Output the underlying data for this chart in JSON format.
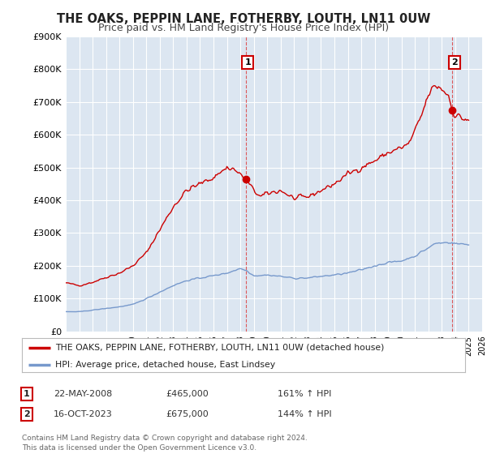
{
  "title": "THE OAKS, PEPPIN LANE, FOTHERBY, LOUTH, LN11 0UW",
  "subtitle": "Price paid vs. HM Land Registry's House Price Index (HPI)",
  "title_fontsize": 10.5,
  "subtitle_fontsize": 9,
  "background_color": "#ffffff",
  "plot_bg_color": "#dce6f1",
  "grid_color": "#ffffff",
  "red_line_color": "#cc0000",
  "blue_line_color": "#7799cc",
  "sale1_date_x": 2008.39,
  "sale1_price": 465000,
  "sale1_label": "1",
  "sale2_date_x": 2023.79,
  "sale2_price": 675000,
  "sale2_label": "2",
  "xmin": 1995,
  "xmax": 2026,
  "ymin": 0,
  "ymax": 900000,
  "yticks": [
    0,
    100000,
    200000,
    300000,
    400000,
    500000,
    600000,
    700000,
    800000,
    900000
  ],
  "ytick_labels": [
    "£0",
    "£100K",
    "£200K",
    "£300K",
    "£400K",
    "£500K",
    "£600K",
    "£700K",
    "£800K",
    "£900K"
  ],
  "legend_red_label": "THE OAKS, PEPPIN LANE, FOTHERBY, LOUTH, LN11 0UW (detached house)",
  "legend_blue_label": "HPI: Average price, detached house, East Lindsey",
  "note1_label": "1",
  "note1_date": "22-MAY-2008",
  "note1_price": "£465,000",
  "note1_hpi": "161% ↑ HPI",
  "note2_label": "2",
  "note2_date": "16-OCT-2023",
  "note2_price": "£675,000",
  "note2_hpi": "144% ↑ HPI",
  "footer": "Contains HM Land Registry data © Crown copyright and database right 2024.\nThis data is licensed under the Open Government Licence v3.0."
}
